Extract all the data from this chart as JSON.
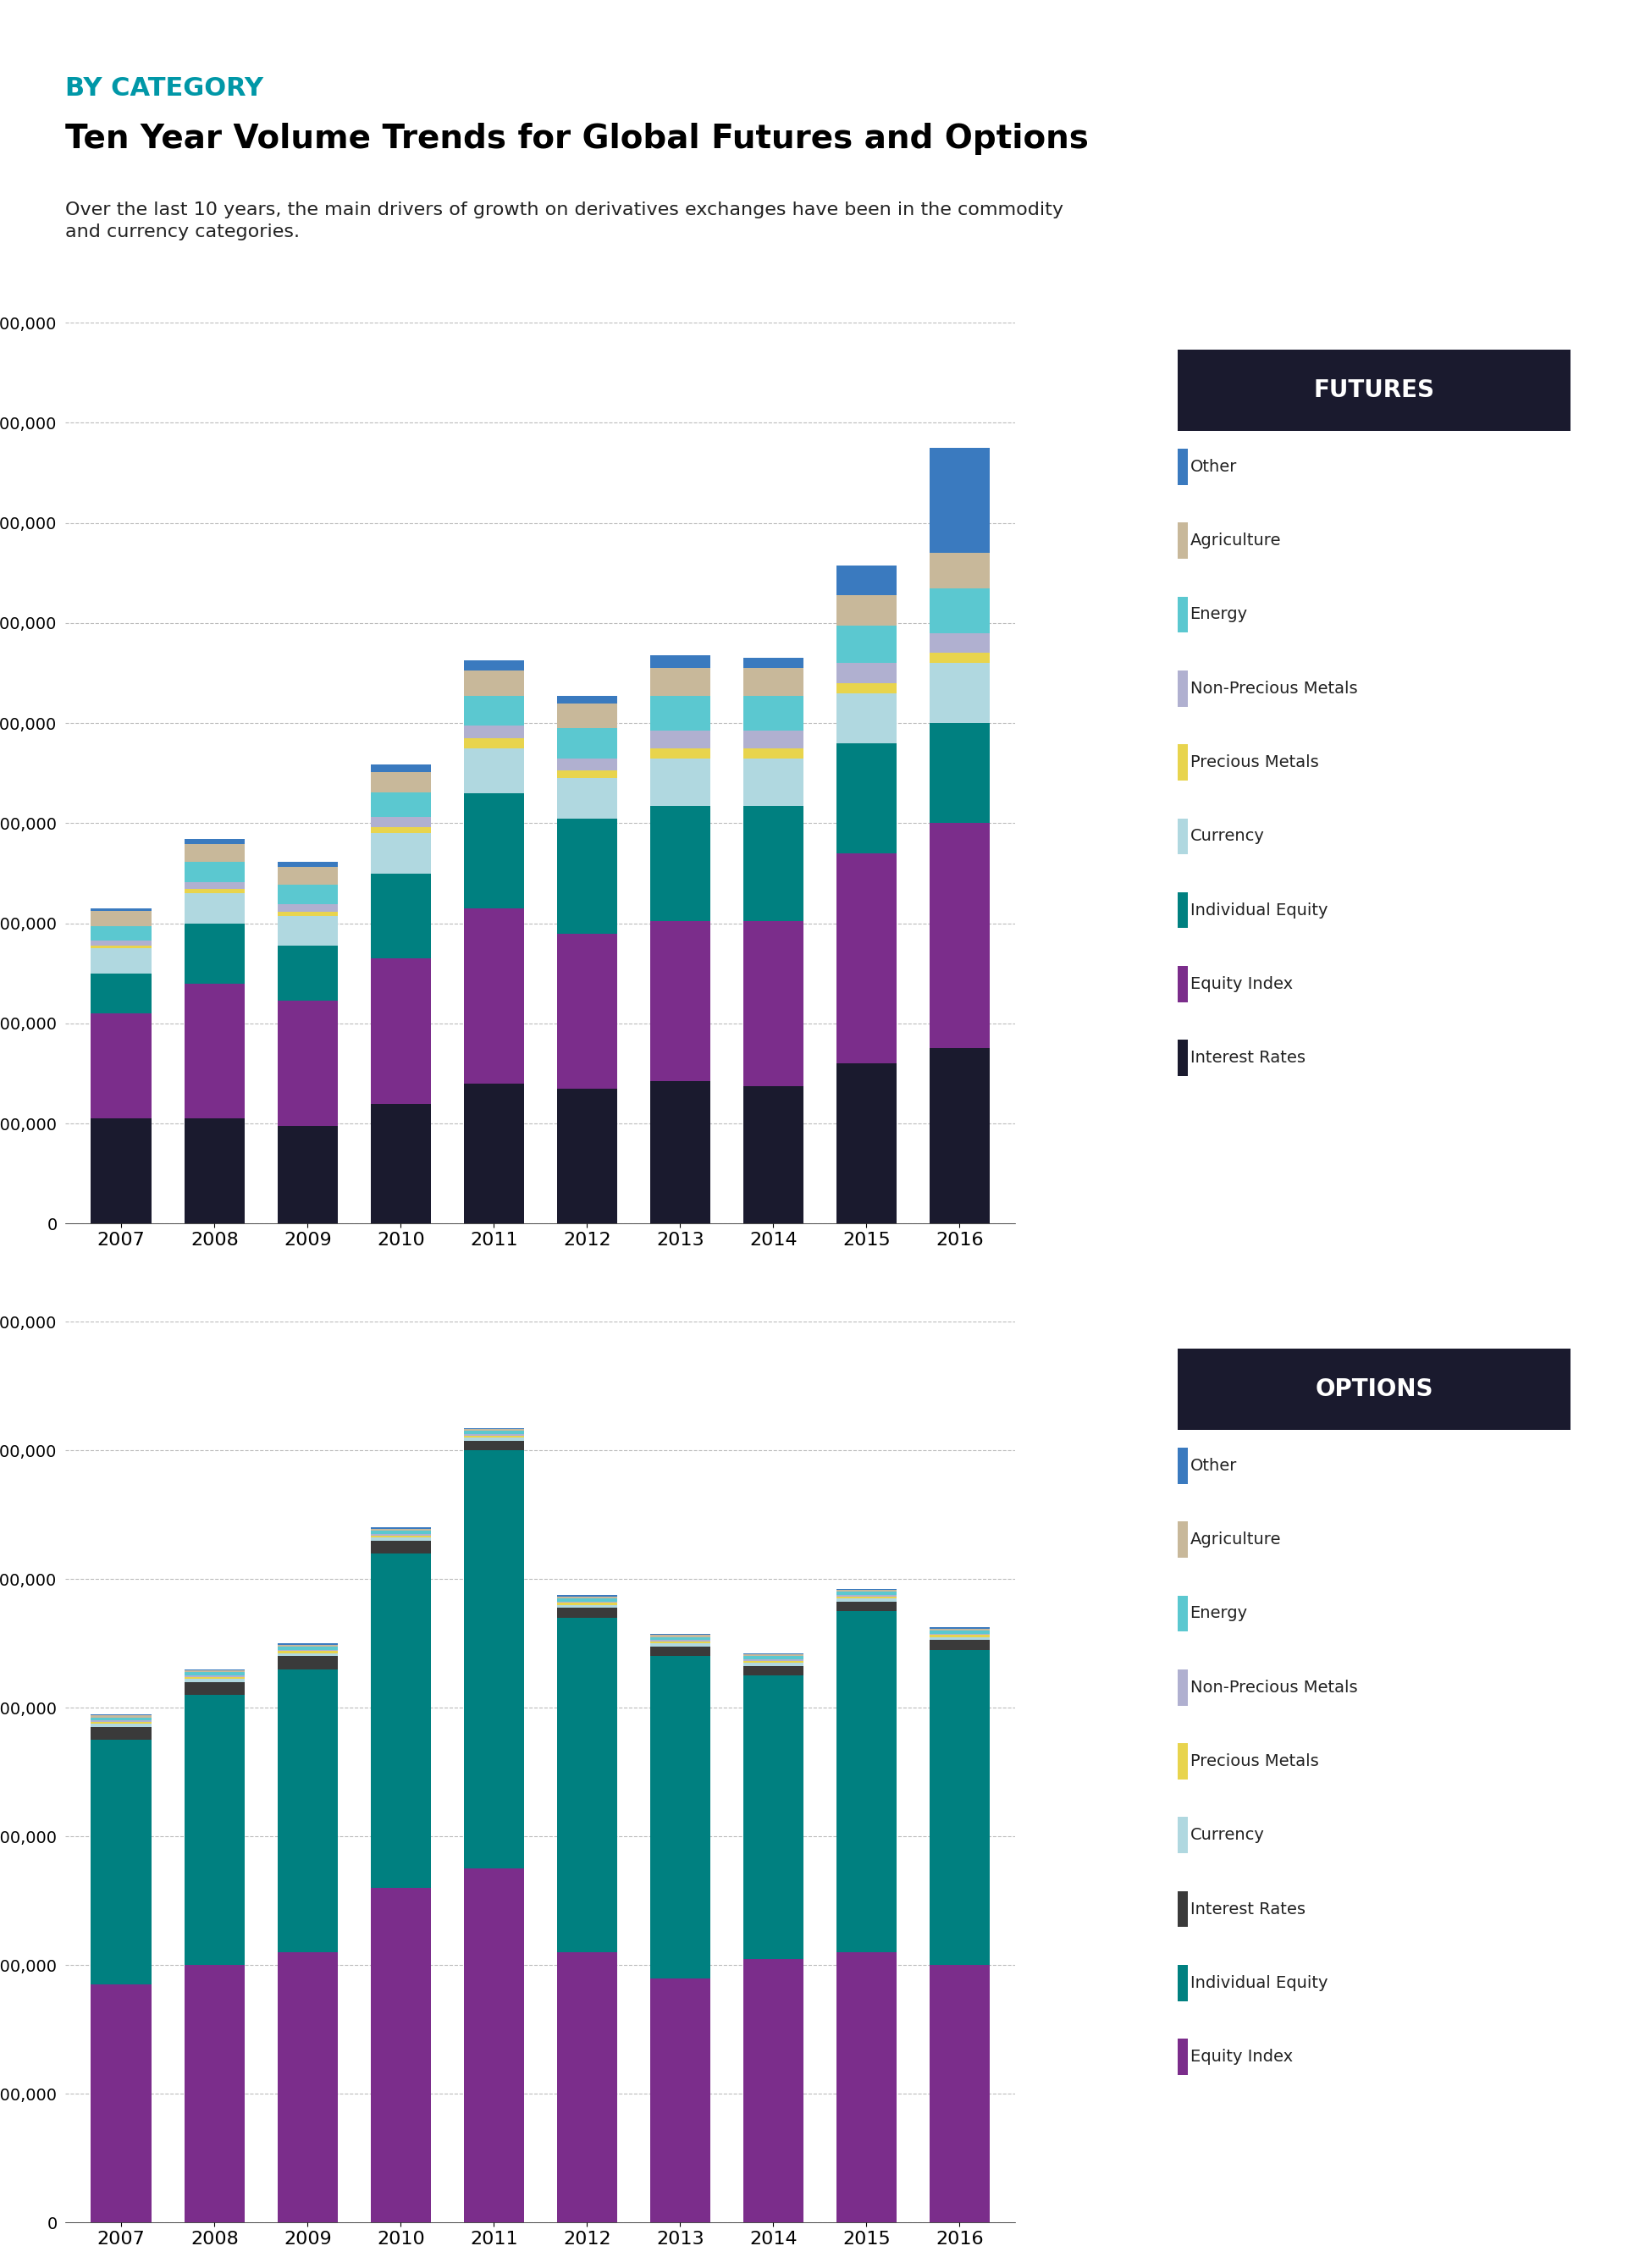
{
  "title_category": "BY CATEGORY",
  "title_main": "Ten Year Volume Trends for Global Futures and Options",
  "subtitle": "Over the last 10 years, the main drivers of growth on derivatives exchanges have been in the commodity\nand currency categories.",
  "years": [
    2007,
    2008,
    2009,
    2010,
    2011,
    2012,
    2013,
    2014,
    2015,
    2016
  ],
  "futures_categories": [
    "Interest Rates",
    "Equity Index",
    "Individual Equity",
    "Currency",
    "Precious Metals",
    "Non-Precious Metals",
    "Energy",
    "Agriculture",
    "Other"
  ],
  "futures_colors": [
    "#1a1a2e",
    "#7b2d8b",
    "#008080",
    "#b0d8e0",
    "#e8d44d",
    "#b0b0d0",
    "#5bc8d0",
    "#c8b89a",
    "#3a7abf"
  ],
  "futures_data": {
    "Interest Rates": [
      2100000000,
      2100000000,
      1950000000,
      2400000000,
      2800000000,
      2700000000,
      2850000000,
      2750000000,
      3200000000,
      3500000000
    ],
    "Equity Index": [
      2100000000,
      2700000000,
      2500000000,
      2900000000,
      3500000000,
      3100000000,
      3200000000,
      3300000000,
      4200000000,
      4500000000
    ],
    "Individual Equity": [
      800000000,
      1200000000,
      1100000000,
      1700000000,
      2300000000,
      2300000000,
      2300000000,
      2300000000,
      2200000000,
      2000000000
    ],
    "Currency": [
      500000000,
      600000000,
      600000000,
      800000000,
      900000000,
      800000000,
      950000000,
      950000000,
      1000000000,
      1200000000
    ],
    "Precious Metals": [
      50000000,
      80000000,
      80000000,
      120000000,
      200000000,
      150000000,
      200000000,
      200000000,
      200000000,
      200000000
    ],
    "Non-Precious Metals": [
      100000000,
      150000000,
      150000000,
      200000000,
      250000000,
      250000000,
      350000000,
      350000000,
      400000000,
      400000000
    ],
    "Energy": [
      300000000,
      400000000,
      400000000,
      500000000,
      600000000,
      600000000,
      700000000,
      700000000,
      750000000,
      900000000
    ],
    "Agriculture": [
      300000000,
      350000000,
      350000000,
      400000000,
      500000000,
      500000000,
      550000000,
      550000000,
      600000000,
      700000000
    ],
    "Other": [
      50000000,
      100000000,
      100000000,
      150000000,
      200000000,
      150000000,
      250000000,
      200000000,
      600000000,
      2100000000
    ]
  },
  "options_categories": [
    "Equity Index",
    "Individual Equity",
    "Interest Rates",
    "Currency",
    "Precious Metals",
    "Non-Precious Metals",
    "Energy",
    "Agriculture",
    "Other"
  ],
  "options_colors": [
    "#7b2d8b",
    "#008080",
    "#3a3a3a",
    "#b0d8e0",
    "#e8d44d",
    "#b0b0d0",
    "#5bc8d0",
    "#c8b89a",
    "#3a7abf"
  ],
  "options_data": {
    "Equity Index": [
      3700000000,
      4000000000,
      4200000000,
      5200000000,
      5500000000,
      4200000000,
      3800000000,
      4100000000,
      4200000000,
      4000000000
    ],
    "Individual Equity": [
      3800000000,
      4200000000,
      4400000000,
      5200000000,
      6500000000,
      5200000000,
      5000000000,
      4400000000,
      5300000000,
      4900000000
    ],
    "Interest Rates": [
      200000000,
      200000000,
      200000000,
      200000000,
      150000000,
      150000000,
      150000000,
      150000000,
      150000000,
      150000000
    ],
    "Currency": [
      50000000,
      50000000,
      50000000,
      50000000,
      50000000,
      50000000,
      50000000,
      50000000,
      50000000,
      50000000
    ],
    "Precious Metals": [
      30000000,
      30000000,
      30000000,
      30000000,
      30000000,
      30000000,
      30000000,
      30000000,
      30000000,
      30000000
    ],
    "Non-Precious Metals": [
      20000000,
      20000000,
      20000000,
      20000000,
      20000000,
      20000000,
      20000000,
      20000000,
      20000000,
      20000000
    ],
    "Energy": [
      50000000,
      50000000,
      50000000,
      50000000,
      50000000,
      50000000,
      50000000,
      50000000,
      50000000,
      50000000
    ],
    "Agriculture": [
      30000000,
      30000000,
      30000000,
      30000000,
      30000000,
      30000000,
      30000000,
      30000000,
      30000000,
      30000000
    ],
    "Other": [
      20000000,
      20000000,
      20000000,
      20000000,
      20000000,
      20000000,
      20000000,
      20000000,
      20000000,
      20000000
    ]
  },
  "futures_legend": [
    "Other",
    "Agriculture",
    "Energy",
    "Non-Precious Metals",
    "Precious Metals",
    "Currency",
    "Individual Equity",
    "Equity Index",
    "Interest Rates"
  ],
  "futures_legend_colors": [
    "#3a7abf",
    "#c8b89a",
    "#5bc8d0",
    "#b0b0d0",
    "#e8d44d",
    "#b0d8e0",
    "#008080",
    "#7b2d8b",
    "#1a1a2e"
  ],
  "options_legend": [
    "Other",
    "Agriculture",
    "Energy",
    "Non-Precious Metals",
    "Precious Metals",
    "Currency",
    "Interest Rates",
    "Individual Equity",
    "Equity Index"
  ],
  "options_legend_colors": [
    "#3a7abf",
    "#c8b89a",
    "#5bc8d0",
    "#b0b0d0",
    "#e8d44d",
    "#b0d8e0",
    "#3a3a3a",
    "#008080",
    "#7b2d8b"
  ],
  "futures_ylim": [
    0,
    18000000000
  ],
  "options_ylim": [
    0,
    14000000000
  ],
  "teal_color": "#0097a7",
  "background_color": "#ffffff"
}
